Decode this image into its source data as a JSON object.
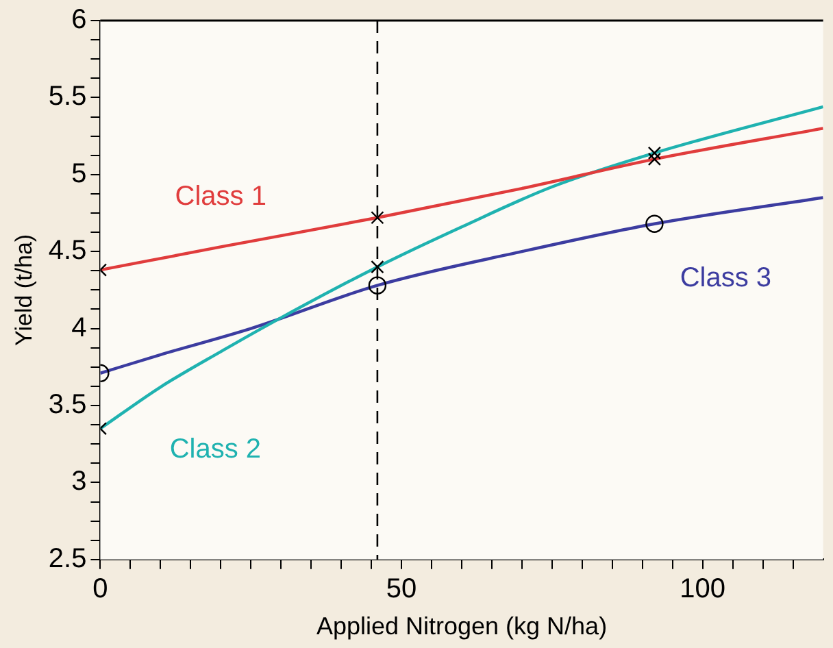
{
  "chart_data": {
    "type": "line",
    "xlabel": "Applied Nitrogen (kg N/ha)",
    "ylabel": "Yield (t/ha)",
    "xlim": [
      0,
      120
    ],
    "ylim": [
      2.5,
      6
    ],
    "xticks": [
      0,
      {
        "value": 5,
        "label": null
      },
      {
        "value": 10,
        "label": null
      },
      {
        "value": 15,
        "label": null
      },
      {
        "value": 20,
        "label": null
      },
      {
        "value": 25,
        "label": null
      },
      {
        "value": 30,
        "label": null
      },
      {
        "value": 35,
        "label": null
      },
      {
        "value": 40,
        "label": null
      },
      {
        "value": 45,
        "label": null
      },
      50,
      {
        "value": 55,
        "label": null
      },
      {
        "value": 60,
        "label": null
      },
      {
        "value": 65,
        "label": null
      },
      {
        "value": 70,
        "label": null
      },
      {
        "value": 75,
        "label": null
      },
      {
        "value": 80,
        "label": null
      },
      {
        "value": 85,
        "label": null
      },
      {
        "value": 90,
        "label": null
      },
      {
        "value": 95,
        "label": null
      },
      100,
      {
        "value": 105,
        "label": null
      },
      {
        "value": 110,
        "label": null
      },
      {
        "value": 115,
        "label": null
      }
    ],
    "yticks": [
      2.5,
      {
        "value": 2.625,
        "label": null
      },
      {
        "value": 2.75,
        "label": null
      },
      {
        "value": 2.875,
        "label": null
      },
      3,
      {
        "value": 3.125,
        "label": null
      },
      {
        "value": 3.25,
        "label": null
      },
      {
        "value": 3.375,
        "label": null
      },
      3.5,
      {
        "value": 3.625,
        "label": null
      },
      {
        "value": 3.75,
        "label": null
      },
      {
        "value": 3.875,
        "label": null
      },
      4,
      {
        "value": 4.125,
        "label": null
      },
      {
        "value": 4.25,
        "label": null
      },
      {
        "value": 4.375,
        "label": null
      },
      4.5,
      {
        "value": 4.625,
        "label": null
      },
      {
        "value": 4.75,
        "label": null
      },
      {
        "value": 4.875,
        "label": null
      },
      5,
      {
        "value": 5.125,
        "label": null
      },
      {
        "value": 5.25,
        "label": null
      },
      {
        "value": 5.375,
        "label": null
      },
      5.5,
      {
        "value": 5.625,
        "label": null
      },
      {
        "value": 5.75,
        "label": null
      },
      {
        "value": 5.875,
        "label": null
      },
      6
    ],
    "grid": false,
    "legend": false,
    "line_style": "solid",
    "marker": "none",
    "series": [
      {
        "name": "Class 1",
        "color": "#e03c3c",
        "x": [
          0,
          20,
          46,
          70,
          92,
          120
        ],
        "values": [
          4.38,
          4.53,
          4.72,
          4.91,
          5.1,
          5.3
        ]
      },
      {
        "name": "Class 2",
        "color": "#1fb2b0",
        "x": [
          0,
          10,
          20,
          30,
          46,
          60,
          75,
          92,
          120
        ],
        "values": [
          3.35,
          3.62,
          3.85,
          4.07,
          4.4,
          4.66,
          4.92,
          5.14,
          5.44
        ]
      },
      {
        "name": "Class 3",
        "color": "#3c3ca0",
        "x": [
          0,
          10,
          25,
          46,
          70,
          92,
          120
        ],
        "values": [
          3.71,
          3.83,
          4.0,
          4.28,
          4.5,
          4.68,
          4.85
        ]
      },
      {
        "type": "scatter",
        "color": "#000000",
        "marker": "cross",
        "x": [
          0,
          46,
          92
        ],
        "values": [
          4.38,
          4.72,
          5.1
        ]
      },
      {
        "type": "scatter",
        "color": "#000000",
        "marker": "cross",
        "x": [
          0,
          46,
          92
        ],
        "values": [
          3.35,
          4.4,
          5.14
        ]
      },
      {
        "type": "scatter",
        "color": "#000000",
        "marker": "circle",
        "x": [
          0,
          46,
          92
        ],
        "values": [
          3.71,
          4.28,
          4.68
        ]
      }
    ],
    "ref_lines": [
      {
        "axis": "x",
        "value": 46,
        "line_style": "dashed",
        "color": "#000000"
      }
    ]
  }
}
